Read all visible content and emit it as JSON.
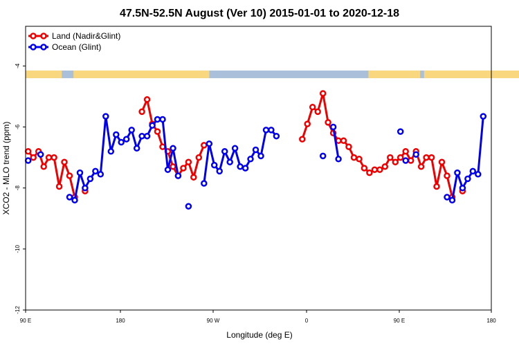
{
  "chart_data": {
    "type": "line",
    "title": "47.5N-52.5N August (Ver 10)   2015-01-01 to 2020-12-18",
    "xlabel": "Longitude (deg E)",
    "ylabel": "XCO2 - MLO trend (ppm)",
    "x_ticks": [
      "90 E",
      "180",
      "90 W",
      "0",
      "90 E",
      "180"
    ],
    "y_ticks": [
      "-4",
      "-6",
      "-8",
      "-10",
      "-12"
    ],
    "y_tick_values": [
      -4,
      -6,
      -8,
      -10,
      -12
    ],
    "xlim": [
      90,
      450
    ],
    "ylim": [
      -12,
      -2.7
    ],
    "grid": false,
    "legend_placement": "top-left",
    "land_ocean_strip": {
      "y_range": [
        -4.15,
        -4.4
      ],
      "land_color": "#f9d77e",
      "ocean_color": "#a9bfda"
    },
    "series": [
      {
        "name": "Land (Nadir&Glint)",
        "color": "#ee0000",
        "points": [
          [
            92.5,
            -6.8
          ],
          [
            97.5,
            -7.0
          ],
          [
            102.5,
            -6.8
          ],
          [
            107.5,
            -7.3
          ],
          [
            112.5,
            -7.0
          ],
          [
            117.5,
            -7.0
          ],
          [
            122.5,
            -7.95
          ],
          [
            127.5,
            -7.15
          ],
          [
            132.5,
            -7.6
          ],
          [
            137.5,
            -8.3
          ],
          null,
          [
            147.5,
            -8.1
          ],
          null,
          [
            202.5,
            -5.5
          ],
          [
            207.5,
            -5.1
          ],
          [
            212.5,
            -5.9
          ],
          [
            217.5,
            -6.15
          ],
          [
            222.5,
            -6.65
          ],
          [
            227.5,
            -6.8
          ],
          [
            232.5,
            -7.3
          ],
          [
            237.5,
            -7.6
          ],
          [
            242.5,
            -7.35
          ],
          [
            247.5,
            -7.15
          ],
          [
            252.5,
            -7.65
          ],
          [
            257.5,
            -7.0
          ],
          [
            262.5,
            -6.6
          ],
          null,
          [
            357.5,
            -6.4
          ],
          [
            362.5,
            -5.9
          ],
          [
            367.5,
            -5.35
          ],
          [
            372.5,
            -5.5
          ],
          [
            377.5,
            -4.9
          ],
          [
            382.5,
            -5.85
          ],
          [
            387.5,
            -6.2
          ],
          [
            392.5,
            -6.45
          ],
          [
            397.5,
            -6.45
          ],
          [
            402.5,
            -6.65
          ],
          [
            407.5,
            -7.0
          ],
          [
            412.5,
            -7.05
          ],
          [
            417.5,
            -7.35
          ],
          [
            422.5,
            -7.5
          ],
          [
            427.5,
            -7.4
          ],
          [
            432.5,
            -7.4
          ],
          [
            437.5,
            -7.3
          ],
          [
            442.5,
            -7.0
          ],
          [
            447.5,
            -7.15
          ],
          [
            452.5,
            -7.0
          ],
          [
            457.5,
            -6.8
          ],
          [
            462.5,
            -7.1
          ],
          [
            467.5,
            -6.8
          ],
          [
            472.5,
            -7.3
          ],
          [
            477.5,
            -7.0
          ],
          [
            482.5,
            -7.0
          ],
          [
            487.5,
            -7.95
          ],
          [
            492.5,
            -7.15
          ],
          [
            497.5,
            -7.6
          ],
          [
            502.5,
            -8.3
          ],
          null,
          [
            512.5,
            -8.1
          ]
        ]
      },
      {
        "name": "Ocean (Glint)",
        "color": "#0000ee",
        "points": [
          [
            92.5,
            -7.1
          ],
          null,
          [
            104.5,
            -6.9
          ],
          null,
          [
            132.5,
            -8.3
          ],
          [
            137.5,
            -8.4
          ],
          [
            142.5,
            -7.5
          ],
          [
            147.5,
            -8.0
          ],
          [
            152.5,
            -7.7
          ],
          [
            157.5,
            -7.45
          ],
          [
            162.5,
            -7.55
          ],
          [
            167.5,
            -5.65
          ],
          [
            172.5,
            -6.8
          ],
          [
            177.5,
            -6.25
          ],
          [
            182.5,
            -6.5
          ],
          [
            187.5,
            -6.4
          ],
          [
            192.5,
            -6.1
          ],
          [
            197.5,
            -6.7
          ],
          [
            202.5,
            -6.3
          ],
          [
            207.5,
            -6.3
          ],
          [
            212.5,
            -5.95
          ],
          [
            217.5,
            -5.75
          ],
          [
            222.5,
            -5.75
          ],
          [
            227.5,
            -7.4
          ],
          [
            232.5,
            -6.7
          ],
          [
            237.5,
            -7.6
          ],
          null,
          [
            247.5,
            -8.6
          ],
          null,
          [
            262.5,
            -7.85
          ],
          [
            267.5,
            -6.55
          ],
          [
            272.5,
            -7.25
          ],
          [
            277.5,
            -7.45
          ],
          [
            282.5,
            -6.8
          ],
          [
            287.5,
            -7.15
          ],
          [
            292.5,
            -6.7
          ],
          [
            297.5,
            -7.3
          ],
          [
            302.5,
            -7.35
          ],
          [
            307.5,
            -7.05
          ],
          [
            312.5,
            -6.75
          ],
          [
            317.5,
            -6.95
          ],
          [
            322.5,
            -6.1
          ],
          [
            327.5,
            -6.1
          ],
          [
            332.5,
            -6.3
          ],
          null,
          [
            377.5,
            -6.95
          ],
          null,
          [
            387.5,
            -6.0
          ],
          [
            392.5,
            -7.05
          ],
          null,
          [
            452.5,
            -6.15
          ],
          null,
          [
            457.5,
            -7.1
          ],
          null,
          [
            467.5,
            -6.9
          ],
          null,
          [
            497.5,
            -8.3
          ],
          [
            502.5,
            -8.4
          ],
          [
            507.5,
            -7.5
          ],
          [
            512.5,
            -8.0
          ],
          [
            517.5,
            -7.7
          ],
          [
            522.5,
            -7.45
          ],
          [
            527.5,
            -7.55
          ],
          [
            532.5,
            -5.65
          ]
        ]
      }
    ]
  }
}
